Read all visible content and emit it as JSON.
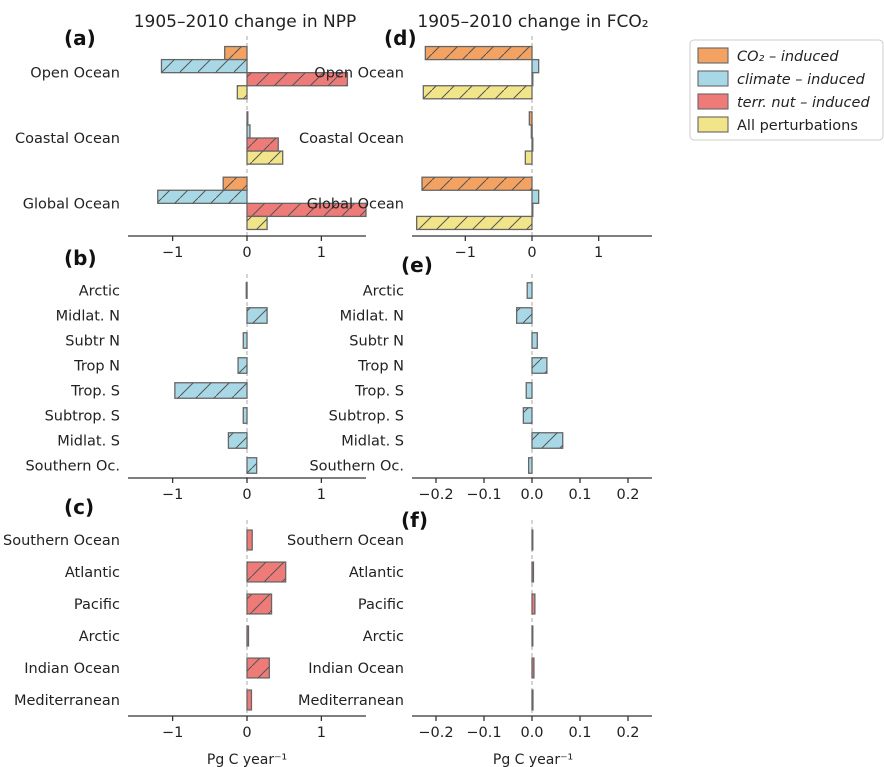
{
  "colors": {
    "co2": "#f3a261",
    "climate": "#a8d8e6",
    "nut": "#ef7b78",
    "all": "#f2e488",
    "edge": "#666666"
  },
  "legend": [
    {
      "key": "co2",
      "label": "CO₂ – induced",
      "italic": true
    },
    {
      "key": "climate",
      "label": "climate – induced",
      "italic": true
    },
    {
      "key": "nut",
      "label": "terr. nut – induced",
      "italic": true
    },
    {
      "key": "all",
      "label": "All perturbations",
      "italic": false
    }
  ],
  "headers": {
    "left": "1905–2010 change in NPP",
    "right": "1905–2010 change in FCO₂"
  },
  "xlabel_left": "Pg C year⁻¹",
  "xlabel_right": "Pg C year⁻¹",
  "chart_data": [
    {
      "id": "a",
      "panel_label": "(a)",
      "type": "bar",
      "orientation": "horizontal",
      "xlim": [
        -1.6,
        1.6
      ],
      "xticks": [
        -1,
        0,
        1
      ],
      "categories": [
        "Open Ocean",
        "Coastal Ocean",
        "Global Ocean"
      ],
      "series": [
        {
          "key": "co2",
          "name": "CO₂ – induced",
          "values": [
            -0.3,
            0.0,
            -0.32
          ]
        },
        {
          "key": "climate",
          "name": "climate – induced",
          "values": [
            -1.15,
            0.04,
            -1.2
          ]
        },
        {
          "key": "nut",
          "name": "terr. nut – induced",
          "values": [
            1.35,
            0.42,
            1.75
          ]
        },
        {
          "key": "all",
          "name": "All perturbations",
          "values": [
            -0.13,
            0.48,
            0.27
          ]
        }
      ]
    },
    {
      "id": "d",
      "panel_label": "(d)",
      "type": "bar",
      "orientation": "horizontal",
      "xlim": [
        -1.8,
        1.8
      ],
      "xticks": [
        -1,
        0,
        1
      ],
      "categories": [
        "Open Ocean",
        "Coastal Ocean",
        "Global Ocean"
      ],
      "series": [
        {
          "key": "co2",
          "name": "CO₂ – induced",
          "values": [
            -1.6,
            -0.04,
            -1.65
          ]
        },
        {
          "key": "climate",
          "name": "climate – induced",
          "values": [
            0.1,
            -0.01,
            0.1
          ]
        },
        {
          "key": "nut",
          "name": "terr. nut – induced",
          "values": [
            0.0,
            0.0,
            0.0
          ]
        },
        {
          "key": "all",
          "name": "All perturbations",
          "values": [
            -1.63,
            -0.1,
            -1.73
          ]
        }
      ]
    },
    {
      "id": "b",
      "panel_label": "(b)",
      "type": "bar",
      "orientation": "horizontal",
      "xlim": [
        -1.6,
        1.6
      ],
      "xticks": [
        -1,
        0,
        1
      ],
      "categories": [
        "Arctic",
        "Midlat. N",
        "Subtr N",
        "Trop N",
        "Trop. S",
        "Subtrop. S",
        "Midlat. S",
        "Southern Oc."
      ],
      "series": [
        {
          "key": "climate",
          "name": "climate – induced",
          "values": [
            -0.01,
            0.27,
            -0.05,
            -0.12,
            -0.97,
            -0.05,
            -0.25,
            0.13
          ]
        }
      ]
    },
    {
      "id": "e",
      "panel_label": "(e)",
      "type": "bar",
      "orientation": "horizontal",
      "xlim": [
        -0.25,
        0.25
      ],
      "xticks": [
        -0.2,
        -0.1,
        0.0,
        0.1,
        0.2
      ],
      "categories": [
        "Arctic",
        "Midlat. N",
        "Subtr N",
        "Trop N",
        "Trop. S",
        "Subtrop. S",
        "Midlat. S",
        "Southern Oc."
      ],
      "series": [
        {
          "key": "climate",
          "name": "climate – induced",
          "values": [
            -0.01,
            -0.032,
            0.011,
            0.031,
            -0.012,
            -0.018,
            0.064,
            -0.007
          ]
        }
      ]
    },
    {
      "id": "c",
      "panel_label": "(c)",
      "type": "bar",
      "orientation": "horizontal",
      "xlim": [
        -1.6,
        1.6
      ],
      "xticks": [
        -1,
        0,
        1
      ],
      "categories": [
        "Southern Ocean",
        "Atlantic",
        "Pacific",
        "Arctic",
        "Indian Ocean",
        "Mediterranean"
      ],
      "series": [
        {
          "key": "nut",
          "name": "terr. nut – induced",
          "values": [
            0.07,
            0.52,
            0.33,
            0.02,
            0.3,
            0.06
          ]
        }
      ]
    },
    {
      "id": "f",
      "panel_label": "(f)",
      "type": "bar",
      "orientation": "horizontal",
      "xlim": [
        -0.25,
        0.25
      ],
      "xticks": [
        -0.2,
        -0.1,
        0.0,
        0.1,
        0.2
      ],
      "categories": [
        "Southern Ocean",
        "Atlantic",
        "Pacific",
        "Arctic",
        "Indian Ocean",
        "Mediterranean"
      ],
      "series": [
        {
          "key": "nut",
          "name": "terr. nut – induced",
          "values": [
            0.001,
            0.003,
            0.006,
            0.001,
            0.004,
            0.002
          ]
        }
      ]
    }
  ]
}
